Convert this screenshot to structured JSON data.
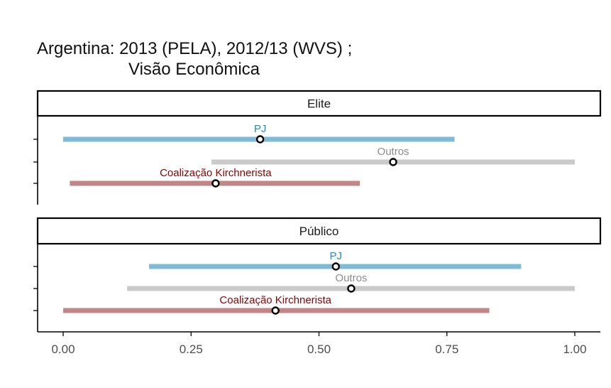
{
  "chart_data": {
    "type": "interval",
    "title_line1": "Argentina: 2013 (PELA), 2012/13 (WVS) ;",
    "title_line2": "Visão Econômica",
    "xlim": [
      0,
      1
    ],
    "x_ticks": [
      0,
      0.25,
      0.5,
      0.75,
      1
    ],
    "x_tick_labels": [
      "0.00",
      "0.25",
      "0.50",
      "0.75",
      "1.00"
    ],
    "colors": {
      "PJ_bar": "#7FBAD6",
      "PJ_label": "#1F8CC0",
      "Outros_bar": "#CACACA",
      "Outros_label": "#8C8C8C",
      "Kirchnerista_bar": "#C38486",
      "Kirchnerista_label": "#8B0000"
    },
    "panels": [
      {
        "strip": "Elite",
        "series": [
          {
            "name": "PJ",
            "low": 0.0,
            "high": 0.765,
            "point": 0.385
          },
          {
            "name": "Outros",
            "low": 0.29,
            "high": 1.0,
            "point": 0.645
          },
          {
            "name": "Coalização Kirchnerista",
            "low": 0.013,
            "high": 0.58,
            "point": 0.298
          }
        ]
      },
      {
        "strip": "Público",
        "series": [
          {
            "name": "PJ",
            "low": 0.168,
            "high": 0.895,
            "point": 0.533
          },
          {
            "name": "Outros",
            "low": 0.125,
            "high": 1.0,
            "point": 0.563
          },
          {
            "name": "Coalização Kirchnerista",
            "low": 0.0,
            "high": 0.833,
            "point": 0.415
          }
        ]
      }
    ]
  }
}
